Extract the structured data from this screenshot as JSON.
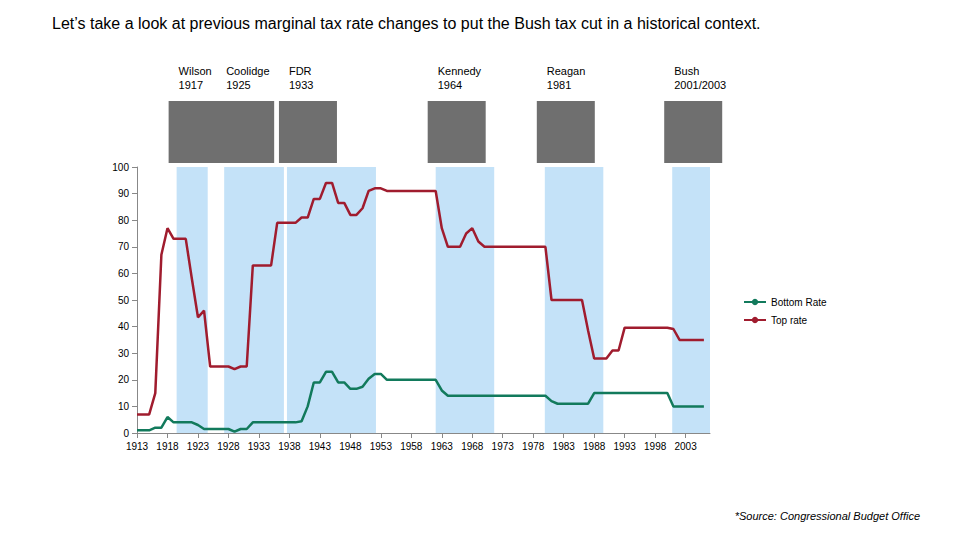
{
  "chart_data": {
    "type": "line",
    "title": "Let’s take a look at previous marginal tax rate changes to put the Bush tax cut in a historical context.",
    "annotations": [
      "*Source: Congressional Budget Office"
    ],
    "x": [
      1913,
      1914,
      1915,
      1916,
      1917,
      1918,
      1919,
      1920,
      1921,
      1922,
      1923,
      1924,
      1925,
      1926,
      1927,
      1928,
      1929,
      1930,
      1931,
      1932,
      1933,
      1934,
      1935,
      1936,
      1937,
      1938,
      1939,
      1940,
      1941,
      1942,
      1943,
      1944,
      1945,
      1946,
      1947,
      1948,
      1949,
      1950,
      1951,
      1952,
      1953,
      1954,
      1955,
      1956,
      1957,
      1958,
      1959,
      1960,
      1961,
      1962,
      1963,
      1964,
      1965,
      1966,
      1967,
      1968,
      1969,
      1970,
      1971,
      1972,
      1973,
      1974,
      1975,
      1976,
      1977,
      1978,
      1979,
      1980,
      1981,
      1982,
      1983,
      1984,
      1985,
      1986,
      1987,
      1988,
      1989,
      1990,
      1991,
      1992,
      1993,
      1994,
      1995,
      1996,
      1997,
      1998,
      1999,
      2000,
      2001,
      2002,
      2003,
      2004,
      2005,
      2006
    ],
    "series": [
      {
        "name": "Bottom Rate",
        "color": "#127a5c",
        "values": [
          1,
          1,
          1,
          2,
          2,
          6,
          4,
          4,
          4,
          4,
          3,
          1.5,
          1.5,
          1.5,
          1.5,
          1.5,
          0.5,
          1.5,
          1.5,
          4,
          4,
          4,
          4,
          4,
          4,
          4,
          4,
          4.4,
          10,
          19,
          19,
          23,
          23,
          19,
          19,
          16.6,
          16.6,
          17.4,
          20.4,
          22.2,
          22.2,
          20,
          20,
          20,
          20,
          20,
          20,
          20,
          20,
          20,
          16,
          14,
          14,
          14,
          14,
          14,
          14,
          14,
          14,
          14,
          14,
          14,
          14,
          14,
          14,
          14,
          14,
          14,
          12,
          11,
          11,
          11,
          11,
          11,
          11,
          15,
          15,
          15,
          15,
          15,
          15,
          15,
          15,
          15,
          15,
          15,
          15,
          15,
          10,
          10,
          10,
          10,
          10,
          10
        ]
      },
      {
        "name": "Top rate",
        "color": "#a01c2e",
        "values": [
          7,
          7,
          7,
          15,
          67,
          77,
          73,
          73,
          73,
          58,
          43.5,
          46,
          25,
          25,
          25,
          25,
          24,
          25,
          25,
          63,
          63,
          63,
          63,
          79,
          79,
          79,
          79,
          81,
          81,
          88,
          88,
          94,
          94,
          86.5,
          86.5,
          82,
          82,
          84.5,
          91,
          92,
          92,
          91,
          91,
          91,
          91,
          91,
          91,
          91,
          91,
          91,
          77,
          70,
          70,
          70,
          75,
          77,
          72,
          70,
          70,
          70,
          70,
          70,
          70,
          70,
          70,
          70,
          70,
          70,
          50,
          50,
          50,
          50,
          50,
          50,
          38.5,
          28,
          28,
          28,
          31,
          31,
          39.6,
          39.6,
          39.6,
          39.6,
          39.6,
          39.6,
          39.6,
          39.6,
          39.1,
          35,
          35,
          35,
          35,
          35
        ]
      }
    ],
    "bands": {
      "color": "#c4e2f8",
      "periods": [
        {
          "name": "Wilson",
          "year": "1917",
          "start": 1919.5,
          "end": 1924.6
        },
        {
          "name": "Coolidge",
          "year": "1925",
          "start": 1927.3,
          "end": 1937.1
        },
        {
          "name": "FDR",
          "year": "1933",
          "start": 1937.6,
          "end": 1952.2
        },
        {
          "name": "Kennedy",
          "year": "1964",
          "start": 1962,
          "end": 1971.6
        },
        {
          "name": "Reagan",
          "year": "1981",
          "start": 1979.9,
          "end": 1989.5
        },
        {
          "name": "Bush",
          "year": "2001/2003",
          "start": 2000.8,
          "end": 2007
        }
      ]
    },
    "xlim": [
      1913,
      2007
    ],
    "xticks": [
      1913,
      1918,
      1923,
      1928,
      1933,
      1938,
      1943,
      1948,
      1953,
      1958,
      1963,
      1968,
      1973,
      1978,
      1983,
      1988,
      1993,
      1998,
      2003
    ],
    "ylim": [
      0,
      100
    ],
    "yticks": [
      0,
      10,
      20,
      30,
      40,
      50,
      60,
      70,
      80,
      90,
      100
    ],
    "grid": false,
    "legend": "right"
  }
}
